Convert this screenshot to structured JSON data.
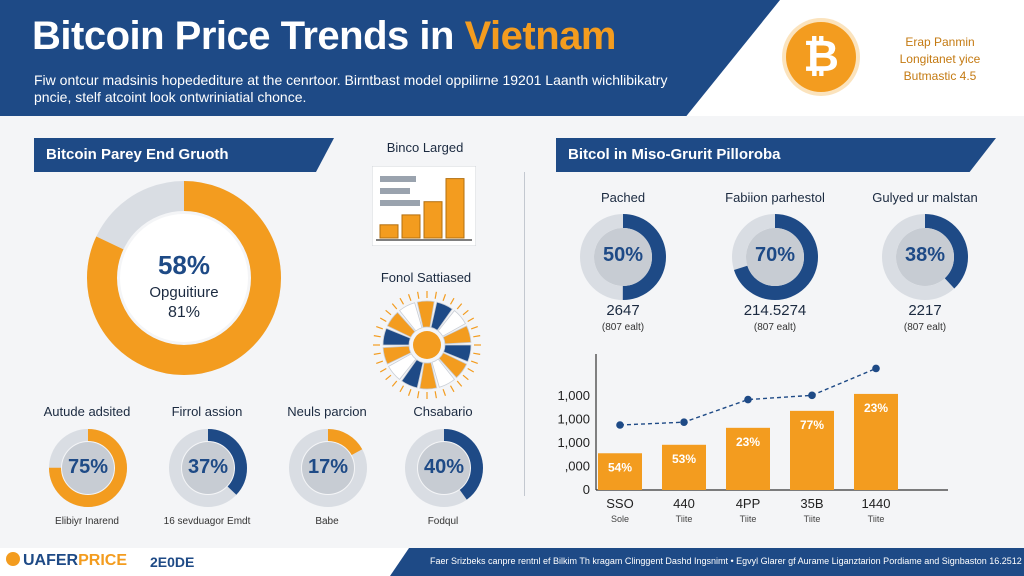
{
  "header": {
    "title_main": "Bitcoin Price Trends in ",
    "title_accent": "Vietnam",
    "subtitle": "Fiw ontcur madsinis hopedediture at the cenrtoor. Birntbast model oppilirne 19201 Laanth wichlibikatry pncie, stelf atcoint look ontwriniatial chonce.",
    "logo_symbol": "₿",
    "note_line1": "Erap Panmin",
    "note_line2": "Longitanet yice",
    "note_line3": "Butmastic 4.5"
  },
  "left_section": {
    "title": "Bitcoin Parey End Gruoth",
    "donut": {
      "percent_label": "58%",
      "line1": "Opguitiure",
      "line2": "81%",
      "value": 58
    },
    "bars_title": "Binco Larged",
    "sunburst_title": "Fonol Sattiased",
    "small_donuts": [
      {
        "title": "Autude adsited",
        "label": "75%",
        "value": 75,
        "caption": "Elibiyr Inarend"
      },
      {
        "title": "Firrol assion",
        "label": "37%",
        "value": 37,
        "caption": "16 sevduagor Emdt"
      },
      {
        "title": "Neuls parcion",
        "label": "17%",
        "value": 17,
        "caption": "Babe"
      },
      {
        "title": "Chsabario",
        "label": "40%",
        "value": 40,
        "caption": "Fodqul"
      }
    ]
  },
  "right_section": {
    "title": "Bitcol in Miso-Grurit Pilloroba",
    "donuts": [
      {
        "title": "Pached",
        "label": "50%",
        "value": 50,
        "number": "2647",
        "sub": "(807 ealt)"
      },
      {
        "title": "Fabiion parhestol",
        "label": "70%",
        "value": 70,
        "number": "214.5274",
        "sub": "(807 ealt)"
      },
      {
        "title": "Gulyed ur malstan",
        "label": "38%",
        "value": 38,
        "number": "2217",
        "sub": "(807 ealt)"
      }
    ]
  },
  "chart_data": [
    {
      "type": "bar",
      "categories": [
        "SSO",
        "440",
        "4PP",
        "35B",
        "1440"
      ],
      "category_sublabels": [
        "Sole",
        "Tiite",
        "Tiite",
        "Tiite",
        "Tiite"
      ],
      "values": [
        1.3,
        1.6,
        2.2,
        2.8,
        3.4
      ],
      "bar_labels": [
        "54%",
        "53%",
        "23%",
        "77%",
        "23%"
      ],
      "line_values": [
        2.3,
        2.4,
        3.2,
        3.35,
        4.3
      ],
      "y_tick_labels": [
        "0",
        ",000",
        "1,000",
        "1,000",
        "1,000"
      ],
      "ylim": [
        0,
        4.6
      ],
      "colors": {
        "bar": "#f39c1f",
        "line": "#1e4a86"
      }
    },
    {
      "type": "bar",
      "title": "Binco Larged",
      "values": [
        0.2,
        0.35,
        0.55,
        0.9
      ],
      "colors": {
        "bar": "#f39c1f"
      }
    }
  ],
  "footer": {
    "logo_text": "UAFER",
    "logo_text2": "PRICE",
    "code": "2E0DE",
    "small_text": "Faer Srizbeks canpre rentnl ef Bilkim Th kragam Clinggent Dashd Ingsnimt • Egvyl Glarer gf Aurame Liganztarion Pordiame and Signbaston 16.2512"
  },
  "colors": {
    "navy": "#1e4a86",
    "orange": "#f39c1f",
    "ring_bg": "#d9dde3"
  }
}
